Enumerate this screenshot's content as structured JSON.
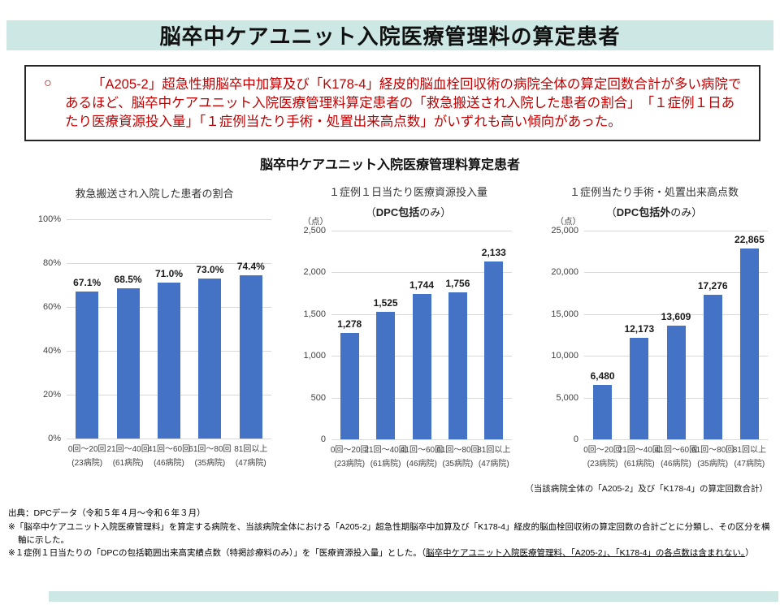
{
  "header": {
    "title": "脳卒中ケアユニット入院医療管理料の算定患者"
  },
  "summary": {
    "bullet": "○",
    "text": "「A205-2」超急性期脳卒中加算及び「K178-4」経皮的脳血栓回収術の病院全体の算定回数合計が多い病院であるほど、脳卒中ケアユニット入院医療管理料算定患者の「救急搬送され入院した患者の割合」　「１症例１日あたり医療資源投入量」「１症例当たり手術・処置出来高点数」がいずれも高い傾向があった。"
  },
  "section_title": "脳卒中ケアユニット入院医療管理料算定患者",
  "chart_data": [
    {
      "type": "bar",
      "title": "救急搬送され入院した患者の割合",
      "subtitle_pre": "",
      "subtitle_bold": "",
      "subtitle_post": "",
      "unit": "",
      "categories": [
        "0回～20回",
        "21回～40回",
        "41回～60回",
        "61回～80回",
        "81回以上"
      ],
      "category_counts": [
        "(23病院)",
        "(61病院)",
        "(46病院)",
        "(35病院)",
        "(47病院)"
      ],
      "values": [
        67.1,
        68.5,
        71.0,
        73.0,
        74.4
      ],
      "value_labels": [
        "67.1%",
        "68.5%",
        "71.0%",
        "73.0%",
        "74.4%"
      ],
      "ymax": 100,
      "ytick_values": [
        0,
        20,
        40,
        60,
        80,
        100
      ],
      "ytick_labels": [
        "0%",
        "20%",
        "40%",
        "60%",
        "80%",
        "100%"
      ],
      "note": ""
    },
    {
      "type": "bar",
      "title": "１症例１日当たり医療資源投入量",
      "subtitle_pre": "（",
      "subtitle_bold": "DPC包括",
      "subtitle_post": "のみ）",
      "unit": "（点）",
      "categories": [
        "0回～20回",
        "21回～40回",
        "41回～60回",
        "61回～80回",
        "81回以上"
      ],
      "category_counts": [
        "(23病院)",
        "(61病院)",
        "(46病院)",
        "(35病院)",
        "(47病院)"
      ],
      "values": [
        1278,
        1525,
        1744,
        1756,
        2133
      ],
      "value_labels": [
        "1,278",
        "1,525",
        "1,744",
        "1,756",
        "2,133"
      ],
      "ymax": 2500,
      "ytick_values": [
        0,
        500,
        1000,
        1500,
        2000,
        2500
      ],
      "ytick_labels": [
        "0",
        "500",
        "1,000",
        "1,500",
        "2,000",
        "2,500"
      ],
      "note": ""
    },
    {
      "type": "bar",
      "title": "１症例当たり手術・処置出来高点数",
      "subtitle_pre": "（",
      "subtitle_bold": "DPC包括外",
      "subtitle_post": "のみ）",
      "unit": "（点）",
      "categories": [
        "0回～20回",
        "21回～40回",
        "41回～60回",
        "61回～80回",
        "81回以上"
      ],
      "category_counts": [
        "(23病院)",
        "(61病院)",
        "(46病院)",
        "(35病院)",
        "(47病院)"
      ],
      "values": [
        6480,
        12173,
        13609,
        17276,
        22865
      ],
      "value_labels": [
        "6,480",
        "12,173",
        "13,609",
        "17,276",
        "22,865"
      ],
      "ymax": 25000,
      "ytick_values": [
        0,
        5000,
        10000,
        15000,
        20000,
        25000
      ],
      "ytick_labels": [
        "0",
        "5,000",
        "10,000",
        "15,000",
        "20,000",
        "25,000"
      ],
      "note": "（当該病院全体の「A205-2」及び「K178-4」の算定回数合計）"
    }
  ],
  "footnotes": {
    "source": "出典：DPCデータ（令和５年４月～令和６年３月）",
    "note1": "※「脳卒中ケアユニット入院医療管理料」を算定する病院を、当該病院全体における「A205-2」超急性期脳卒中加算及び「K178-4」経皮的脳血栓回収術の算定回数の合計ごとに分類し、その区分を横軸に示した。",
    "note2_pre": "※１症例１日当たりの「DPCの包括範囲出来高実績点数（特掲診療料のみ）」を「医療資源投入量」とした。（",
    "note2_underlined": "脳卒中ケアユニット入院医療管理料、「A205-2」、「K178-4」の各点数は含まれない。",
    "note2_post": "）"
  },
  "colors": {
    "accent_band": "#cde8e4",
    "bar": "#4472c4",
    "summary_text": "#c00000",
    "gridline": "#d9d9d9"
  }
}
